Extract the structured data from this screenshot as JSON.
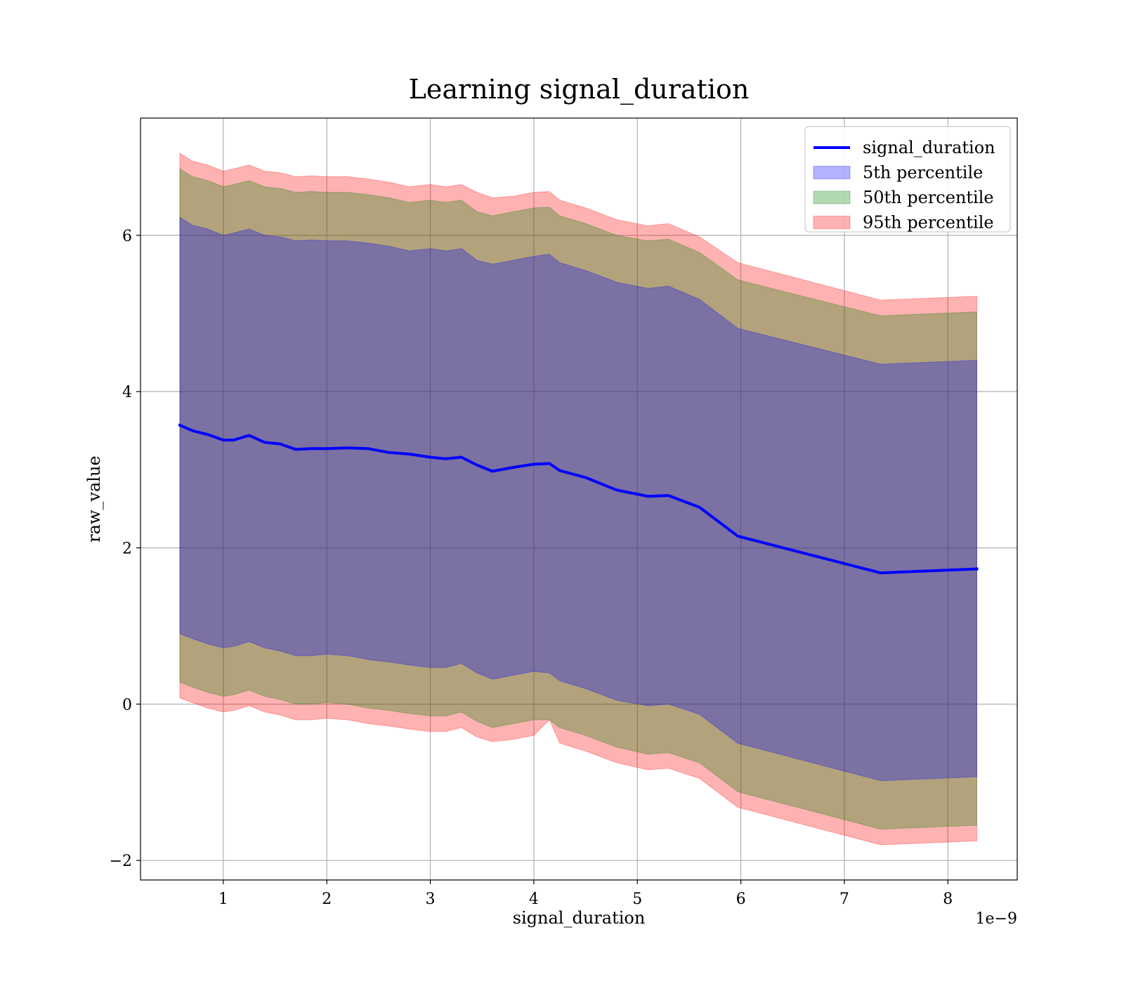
{
  "chart_data": {
    "type": "area",
    "title": "Learning signal_duration",
    "xlabel": "signal_duration",
    "ylabel": "raw_value",
    "x_offset_label": "1e−9",
    "xlim": [
      0.2,
      8.67
    ],
    "ylim": [
      -2.25,
      7.5
    ],
    "xticks": [
      1,
      2,
      3,
      4,
      5,
      6,
      7,
      8
    ],
    "yticks": [
      -2,
      0,
      2,
      4,
      6
    ],
    "xtick_labels": [
      "1",
      "2",
      "3",
      "4",
      "5",
      "6",
      "7",
      "8"
    ],
    "ytick_labels": [
      "−2",
      "0",
      "2",
      "4",
      "6"
    ],
    "grid": true,
    "legend_position": "upper right",
    "x": [
      0.58,
      0.7,
      0.85,
      1.0,
      1.1,
      1.25,
      1.4,
      1.55,
      1.7,
      1.85,
      2.0,
      2.2,
      2.4,
      2.6,
      2.8,
      3.0,
      3.15,
      3.3,
      3.45,
      3.6,
      3.8,
      4.0,
      4.15,
      4.25,
      4.5,
      4.8,
      5.1,
      5.3,
      5.6,
      5.97,
      7.35,
      8.28
    ],
    "series": [
      {
        "name": "signal_duration",
        "kind": "line",
        "color": "#0000ff",
        "values": [
          3.57,
          3.5,
          3.45,
          3.38,
          3.38,
          3.44,
          3.35,
          3.33,
          3.26,
          3.27,
          3.27,
          3.28,
          3.27,
          3.22,
          3.2,
          3.16,
          3.14,
          3.16,
          3.06,
          2.98,
          3.03,
          3.07,
          3.08,
          2.99,
          2.9,
          2.74,
          2.66,
          2.67,
          2.52,
          2.15,
          1.68,
          1.73
        ]
      }
    ],
    "bands": [
      {
        "name": "95th percentile",
        "color": "#ff0000",
        "opacity": 0.3,
        "upper": [
          7.05,
          6.95,
          6.9,
          6.82,
          6.85,
          6.9,
          6.82,
          6.8,
          6.75,
          6.76,
          6.75,
          6.75,
          6.72,
          6.68,
          6.62,
          6.65,
          6.62,
          6.65,
          6.55,
          6.48,
          6.5,
          6.55,
          6.56,
          6.45,
          6.35,
          6.2,
          6.12,
          6.15,
          5.98,
          5.65,
          5.17,
          5.22
        ],
        "lower": [
          0.08,
          0.02,
          -0.05,
          -0.1,
          -0.08,
          -0.02,
          -0.1,
          -0.14,
          -0.2,
          -0.2,
          -0.18,
          -0.2,
          -0.25,
          -0.28,
          -0.32,
          -0.35,
          -0.35,
          -0.3,
          -0.42,
          -0.48,
          -0.45,
          -0.4,
          -0.2,
          -0.5,
          -0.6,
          -0.75,
          -0.84,
          -0.82,
          -0.95,
          -1.32,
          -1.8,
          -1.75
        ]
      },
      {
        "name": "50th percentile",
        "color": "#008000",
        "opacity": 0.3,
        "upper": [
          6.85,
          6.75,
          6.7,
          6.62,
          6.65,
          6.7,
          6.62,
          6.6,
          6.55,
          6.56,
          6.55,
          6.55,
          6.52,
          6.48,
          6.42,
          6.45,
          6.42,
          6.45,
          6.3,
          6.25,
          6.3,
          6.35,
          6.36,
          6.25,
          6.15,
          6.0,
          5.93,
          5.95,
          5.78,
          5.43,
          4.97,
          5.02
        ],
        "lower": [
          0.28,
          0.22,
          0.15,
          0.1,
          0.12,
          0.18,
          0.1,
          0.06,
          0.0,
          0.0,
          0.02,
          0.0,
          -0.05,
          -0.08,
          -0.12,
          -0.15,
          -0.15,
          -0.1,
          -0.22,
          -0.3,
          -0.25,
          -0.2,
          -0.2,
          -0.3,
          -0.4,
          -0.55,
          -0.64,
          -0.62,
          -0.75,
          -1.12,
          -1.6,
          -1.55
        ]
      },
      {
        "name": "5th percentile",
        "color": "#0000ff",
        "opacity": 0.3,
        "upper": [
          6.23,
          6.13,
          6.08,
          6.0,
          6.03,
          6.08,
          6.0,
          5.98,
          5.93,
          5.94,
          5.93,
          5.93,
          5.9,
          5.86,
          5.8,
          5.83,
          5.8,
          5.83,
          5.68,
          5.63,
          5.68,
          5.73,
          5.76,
          5.65,
          5.55,
          5.4,
          5.32,
          5.35,
          5.18,
          4.81,
          4.35,
          4.4
        ],
        "lower": [
          0.9,
          0.84,
          0.77,
          0.72,
          0.74,
          0.8,
          0.72,
          0.68,
          0.62,
          0.62,
          0.64,
          0.62,
          0.57,
          0.54,
          0.5,
          0.47,
          0.47,
          0.52,
          0.4,
          0.32,
          0.37,
          0.42,
          0.4,
          0.3,
          0.2,
          0.05,
          -0.02,
          0.0,
          -0.13,
          -0.5,
          -0.98,
          -0.93
        ]
      }
    ],
    "legend": [
      {
        "label": "signal_duration",
        "kind": "line",
        "color": "#0000ff"
      },
      {
        "label": "5th percentile",
        "kind": "patch",
        "color": "#0000ff"
      },
      {
        "label": "50th percentile",
        "kind": "patch",
        "color": "#008000"
      },
      {
        "label": "95th percentile",
        "kind": "patch",
        "color": "#ff0000"
      }
    ]
  }
}
